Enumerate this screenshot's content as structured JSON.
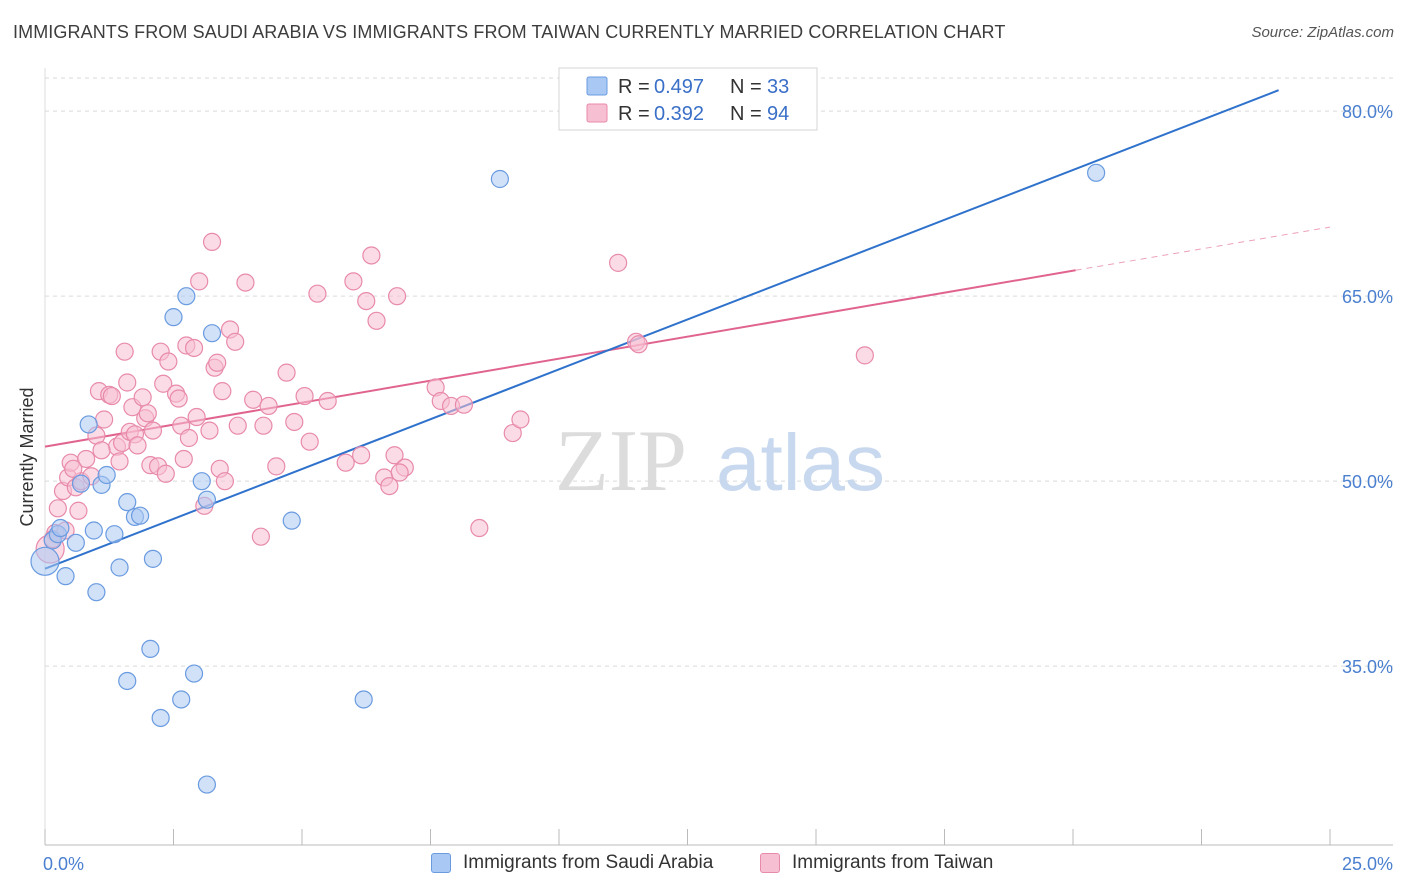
{
  "title": "IMMIGRANTS FROM SAUDI ARABIA VS IMMIGRANTS FROM TAIWAN CURRENTLY MARRIED CORRELATION CHART",
  "source": "Source: ZipAtlas.com",
  "watermark": {
    "zip": "ZIP",
    "atlas": "atlas"
  },
  "colors": {
    "blue_fill": "#a9c8f3",
    "blue_stroke": "#6a9be0",
    "blue_line": "#2f72cc",
    "pink_fill": "#f7bfd2",
    "pink_stroke": "#e88aab",
    "pink_line": "#e0648f",
    "tick_text": "#4a7fcf",
    "grid": "#d9d9d9"
  },
  "legend": {
    "blue": {
      "r_label": "R =",
      "r_value": "0.497",
      "n_label": "N =",
      "n_value": "33"
    },
    "pink": {
      "r_label": "R =",
      "r_value": "0.392",
      "n_label": "N =",
      "n_value": "94"
    }
  },
  "bottom_legend": {
    "blue_label": "Immigrants from Saudi Arabia",
    "pink_label": "Immigrants from Taiwan"
  },
  "chart_data": {
    "type": "scatter",
    "title": "IMMIGRANTS FROM SAUDI ARABIA VS IMMIGRANTS FROM TAIWAN CURRENTLY MARRIED CORRELATION CHART",
    "xlabel": "",
    "ylabel": "Currently Married",
    "xlim": [
      0,
      25
    ],
    "ylim": [
      20.5,
      83.5
    ],
    "x_tick_labels": [
      "0.0%",
      "25.0%"
    ],
    "y_ticks": [
      35,
      50,
      65,
      80
    ],
    "y_tick_labels": [
      "35.0%",
      "50.0%",
      "65.0%",
      "80.0%"
    ],
    "grid": true,
    "series": [
      {
        "name": "Immigrants from Saudi Arabia",
        "color": "blue",
        "r": 0.497,
        "n": 33,
        "trend": {
          "x": [
            0,
            24.0
          ],
          "y": [
            42.9,
            81.7
          ]
        },
        "points": [
          [
            0.0,
            43.5
          ],
          [
            0.15,
            45.2
          ],
          [
            0.25,
            45.7
          ],
          [
            0.3,
            46.2
          ],
          [
            0.4,
            42.3
          ],
          [
            0.6,
            45.0
          ],
          [
            0.7,
            49.8
          ],
          [
            0.85,
            54.6
          ],
          [
            1.0,
            41.0
          ],
          [
            1.1,
            49.7
          ],
          [
            1.2,
            50.5
          ],
          [
            1.35,
            45.7
          ],
          [
            1.45,
            43.0
          ],
          [
            1.6,
            48.3
          ],
          [
            1.75,
            47.1
          ],
          [
            1.85,
            47.2
          ],
          [
            2.1,
            43.7
          ],
          [
            2.5,
            63.3
          ],
          [
            2.75,
            65.0
          ],
          [
            2.9,
            34.4
          ],
          [
            3.05,
            50.0
          ],
          [
            3.15,
            48.5
          ],
          [
            3.25,
            62.0
          ],
          [
            2.65,
            32.3
          ],
          [
            2.25,
            30.8
          ],
          [
            3.15,
            25.4
          ],
          [
            1.6,
            33.8
          ],
          [
            2.05,
            36.4
          ],
          [
            4.8,
            46.8
          ],
          [
            6.2,
            32.3
          ],
          [
            8.85,
            74.5
          ],
          [
            20.45,
            75.0
          ],
          [
            0.95,
            46.0
          ]
        ]
      },
      {
        "name": "Immigrants from Taiwan",
        "color": "pink",
        "r": 0.392,
        "n": 94,
        "trend": {
          "x": [
            0,
            20.05
          ],
          "y": [
            52.8,
            67.1
          ]
        },
        "trend_dashed": {
          "x": [
            20.05,
            25.0
          ],
          "y": [
            67.1,
            70.6
          ]
        },
        "points": [
          [
            0.1,
            44.5
          ],
          [
            0.2,
            45.8
          ],
          [
            0.25,
            47.8
          ],
          [
            0.35,
            49.2
          ],
          [
            0.45,
            50.3
          ],
          [
            0.5,
            51.5
          ],
          [
            0.6,
            49.5
          ],
          [
            0.65,
            47.6
          ],
          [
            0.7,
            50.0
          ],
          [
            0.8,
            51.8
          ],
          [
            0.9,
            50.4
          ],
          [
            1.0,
            53.7
          ],
          [
            1.05,
            57.3
          ],
          [
            1.15,
            55.0
          ],
          [
            1.25,
            57.0
          ],
          [
            1.3,
            56.9
          ],
          [
            1.4,
            52.8
          ],
          [
            1.45,
            51.6
          ],
          [
            1.5,
            53.1
          ],
          [
            1.55,
            60.5
          ],
          [
            1.6,
            58.0
          ],
          [
            1.65,
            54.0
          ],
          [
            1.7,
            56.0
          ],
          [
            1.75,
            53.8
          ],
          [
            1.8,
            52.9
          ],
          [
            1.9,
            56.8
          ],
          [
            1.95,
            55.1
          ],
          [
            2.05,
            51.3
          ],
          [
            2.1,
            54.1
          ],
          [
            2.2,
            51.2
          ],
          [
            2.25,
            60.5
          ],
          [
            2.3,
            57.9
          ],
          [
            2.35,
            50.6
          ],
          [
            2.4,
            59.7
          ],
          [
            2.55,
            57.1
          ],
          [
            2.6,
            56.7
          ],
          [
            2.65,
            54.5
          ],
          [
            2.7,
            51.8
          ],
          [
            2.75,
            61.0
          ],
          [
            2.8,
            53.5
          ],
          [
            2.9,
            60.8
          ],
          [
            2.95,
            55.2
          ],
          [
            3.0,
            66.2
          ],
          [
            3.1,
            48.0
          ],
          [
            3.2,
            54.1
          ],
          [
            3.25,
            69.4
          ],
          [
            3.3,
            59.2
          ],
          [
            3.35,
            59.6
          ],
          [
            3.4,
            51.0
          ],
          [
            3.5,
            50.0
          ],
          [
            3.6,
            62.3
          ],
          [
            3.7,
            61.3
          ],
          [
            3.75,
            54.5
          ],
          [
            3.9,
            66.1
          ],
          [
            4.05,
            56.6
          ],
          [
            4.2,
            45.5
          ],
          [
            4.25,
            54.5
          ],
          [
            4.35,
            56.1
          ],
          [
            4.5,
            51.2
          ],
          [
            4.7,
            58.8
          ],
          [
            4.85,
            54.8
          ],
          [
            5.05,
            56.9
          ],
          [
            5.3,
            65.2
          ],
          [
            5.5,
            56.5
          ],
          [
            5.85,
            51.5
          ],
          [
            6.0,
            66.2
          ],
          [
            6.15,
            52.1
          ],
          [
            6.25,
            64.6
          ],
          [
            6.35,
            68.3
          ],
          [
            6.45,
            63.0
          ],
          [
            6.6,
            50.3
          ],
          [
            6.7,
            49.6
          ],
          [
            6.8,
            52.1
          ],
          [
            6.85,
            65.0
          ],
          [
            7.0,
            51.1
          ],
          [
            7.6,
            57.6
          ],
          [
            7.7,
            56.5
          ],
          [
            7.9,
            56.1
          ],
          [
            8.15,
            56.2
          ],
          [
            8.45,
            46.2
          ],
          [
            9.1,
            53.9
          ],
          [
            9.25,
            55.0
          ],
          [
            11.15,
            67.7
          ],
          [
            11.5,
            61.3
          ],
          [
            11.55,
            61.1
          ],
          [
            15.95,
            60.2
          ],
          [
            0.15,
            45.3
          ],
          [
            0.4,
            46.0
          ],
          [
            1.1,
            52.5
          ],
          [
            2.0,
            55.5
          ],
          [
            3.45,
            57.3
          ],
          [
            5.15,
            53.2
          ],
          [
            6.9,
            50.7
          ],
          [
            0.55,
            51.0
          ]
        ]
      }
    ]
  }
}
